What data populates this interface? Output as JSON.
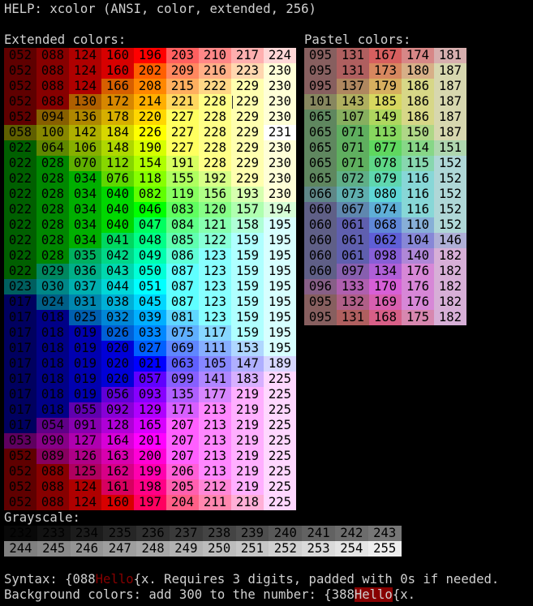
{
  "header": {
    "title": "HELP: xcolor (ANSI, color, extended, 256)"
  },
  "extended": {
    "label": "Extended colors:",
    "rows": [
      [
        "052",
        "088",
        "124",
        "160",
        "196",
        "203",
        "210",
        "217",
        "224"
      ],
      [
        "052",
        "088",
        "124",
        "160",
        "202",
        "209",
        "216",
        "223",
        "230"
      ],
      [
        "052",
        "088",
        "124",
        "166",
        "208",
        "215",
        "222",
        "229",
        "230"
      ],
      [
        "052",
        "088",
        "130",
        "172",
        "214",
        "221",
        "228",
        "229",
        "230"
      ],
      [
        "052",
        "094",
        "136",
        "178",
        "220",
        "227",
        "228",
        "229",
        "230"
      ],
      [
        "058",
        "100",
        "142",
        "184",
        "226",
        "227",
        "228",
        "229",
        "231"
      ],
      [
        "022",
        "064",
        "106",
        "148",
        "190",
        "227",
        "228",
        "229",
        "230"
      ],
      [
        "022",
        "028",
        "070",
        "112",
        "154",
        "191",
        "228",
        "229",
        "230"
      ],
      [
        "022",
        "028",
        "034",
        "076",
        "118",
        "155",
        "192",
        "229",
        "230"
      ],
      [
        "022",
        "028",
        "034",
        "040",
        "082",
        "119",
        "156",
        "193",
        "230"
      ],
      [
        "022",
        "028",
        "034",
        "040",
        "046",
        "083",
        "120",
        "157",
        "194"
      ],
      [
        "022",
        "028",
        "034",
        "040",
        "047",
        "084",
        "121",
        "158",
        "195"
      ],
      [
        "022",
        "028",
        "034",
        "041",
        "048",
        "085",
        "122",
        "159",
        "195"
      ],
      [
        "022",
        "028",
        "035",
        "042",
        "049",
        "086",
        "123",
        "159",
        "195"
      ],
      [
        "022",
        "029",
        "036",
        "043",
        "050",
        "087",
        "123",
        "159",
        "195"
      ],
      [
        "023",
        "030",
        "037",
        "044",
        "051",
        "087",
        "123",
        "159",
        "195"
      ],
      [
        "017",
        "024",
        "031",
        "038",
        "045",
        "087",
        "123",
        "159",
        "195"
      ],
      [
        "017",
        "018",
        "025",
        "032",
        "039",
        "081",
        "123",
        "159",
        "195"
      ],
      [
        "017",
        "018",
        "019",
        "026",
        "033",
        "075",
        "117",
        "159",
        "195"
      ],
      [
        "017",
        "018",
        "019",
        "020",
        "027",
        "069",
        "111",
        "153",
        "195"
      ],
      [
        "017",
        "018",
        "019",
        "020",
        "021",
        "063",
        "105",
        "147",
        "189"
      ],
      [
        "017",
        "018",
        "019",
        "020",
        "057",
        "099",
        "141",
        "183",
        "225"
      ],
      [
        "017",
        "018",
        "019",
        "056",
        "093",
        "135",
        "177",
        "219",
        "225"
      ],
      [
        "017",
        "018",
        "055",
        "092",
        "129",
        "171",
        "213",
        "219",
        "225"
      ],
      [
        "017",
        "054",
        "091",
        "128",
        "165",
        "207",
        "213",
        "219",
        "225"
      ],
      [
        "053",
        "090",
        "127",
        "164",
        "201",
        "207",
        "213",
        "219",
        "225"
      ],
      [
        "052",
        "089",
        "126",
        "163",
        "200",
        "207",
        "213",
        "219",
        "225"
      ],
      [
        "052",
        "088",
        "125",
        "162",
        "199",
        "206",
        "213",
        "219",
        "225"
      ],
      [
        "052",
        "088",
        "124",
        "161",
        "198",
        "205",
        "212",
        "219",
        "225"
      ],
      [
        "052",
        "088",
        "124",
        "160",
        "197",
        "204",
        "211",
        "218",
        "225"
      ]
    ]
  },
  "pastel": {
    "label": "Pastel colors:",
    "rows": [
      [
        "095",
        "131",
        "167",
        "174",
        "181"
      ],
      [
        "095",
        "131",
        "173",
        "180",
        "187"
      ],
      [
        "095",
        "137",
        "179",
        "186",
        "187"
      ],
      [
        "101",
        "143",
        "185",
        "186",
        "187"
      ],
      [
        "065",
        "107",
        "149",
        "186",
        "187"
      ],
      [
        "065",
        "071",
        "113",
        "150",
        "187"
      ],
      [
        "065",
        "071",
        "077",
        "114",
        "151"
      ],
      [
        "065",
        "071",
        "078",
        "115",
        "152"
      ],
      [
        "065",
        "072",
        "079",
        "116",
        "152"
      ],
      [
        "066",
        "073",
        "080",
        "116",
        "152"
      ],
      [
        "060",
        "067",
        "074",
        "116",
        "152"
      ],
      [
        "060",
        "061",
        "068",
        "110",
        "152"
      ],
      [
        "060",
        "061",
        "062",
        "104",
        "146"
      ],
      [
        "060",
        "061",
        "098",
        "140",
        "182"
      ],
      [
        "060",
        "097",
        "134",
        "176",
        "182"
      ],
      [
        "096",
        "133",
        "170",
        "176",
        "182"
      ],
      [
        "095",
        "132",
        "169",
        "176",
        "182"
      ],
      [
        "095",
        "131",
        "168",
        "175",
        "182"
      ]
    ]
  },
  "grayscale": {
    "label": "Grayscale:",
    "rows": [
      [
        "232",
        "233",
        "234",
        "235",
        "236",
        "237",
        "238",
        "239",
        "240",
        "241",
        "242",
        "243"
      ],
      [
        "244",
        "245",
        "246",
        "247",
        "248",
        "249",
        "250",
        "251",
        "252",
        "253",
        "254",
        "255"
      ]
    ]
  },
  "footer": {
    "syntax_prefix": "Syntax: {088",
    "syntax_word": "Hello",
    "syntax_suffix": "{x. Requires 3 digits, padded with 0s if needed.",
    "bg_prefix": "Background colors: add 300 to the number: {388",
    "bg_word": "Hello",
    "bg_suffix": "{x.",
    "fg_color": "#870000",
    "bg_color": "#870000"
  }
}
